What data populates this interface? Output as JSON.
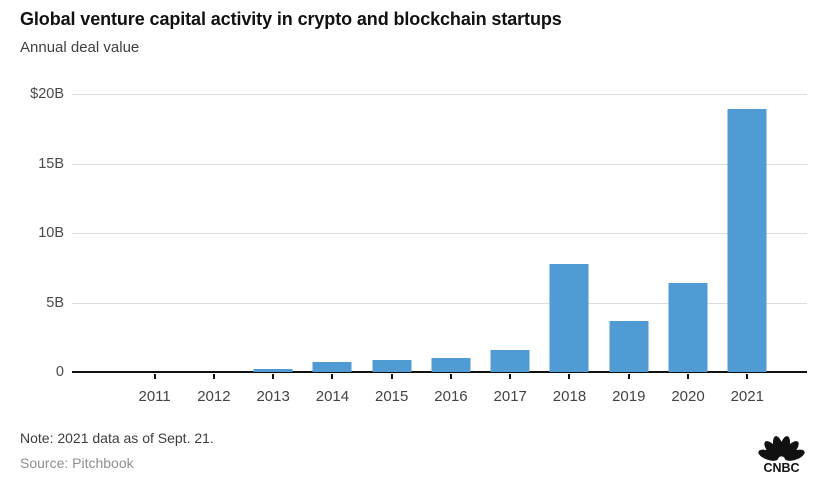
{
  "header": {
    "title": "Global venture capital activity in crypto and blockchain startups",
    "subtitle": "Annual deal value"
  },
  "footer": {
    "note": "Note: 2021 data as of Sept. 21.",
    "source": "Source: Pitchbook",
    "logo": "CNBC"
  },
  "colors": {
    "bar": "#509BD4",
    "gridline": "#dcdcdc",
    "axis": "#111111",
    "title": "#111111",
    "subtitle": "#404040",
    "tick_label": "#4a4a4a"
  },
  "chart_data": {
    "type": "bar",
    "title": "Global venture capital activity in crypto and blockchain startups",
    "subtitle": "Annual deal value",
    "categories": [
      "2011",
      "2012",
      "2013",
      "2014",
      "2015",
      "2016",
      "2017",
      "2018",
      "2019",
      "2020",
      "2021"
    ],
    "values": [
      0,
      0,
      0.2,
      0.7,
      0.9,
      1.0,
      1.6,
      7.8,
      3.7,
      6.4,
      18.9
    ],
    "unit": "billions USD",
    "xlabel": "",
    "ylabel": "",
    "ylim": [
      0,
      20
    ],
    "yticks": [
      {
        "value": 20,
        "label": "$20B"
      },
      {
        "value": 15,
        "label": "15B"
      },
      {
        "value": 10,
        "label": "10B"
      },
      {
        "value": 5,
        "label": "5B"
      },
      {
        "value": 0,
        "label": "0"
      }
    ],
    "grid": true,
    "legend": false
  }
}
